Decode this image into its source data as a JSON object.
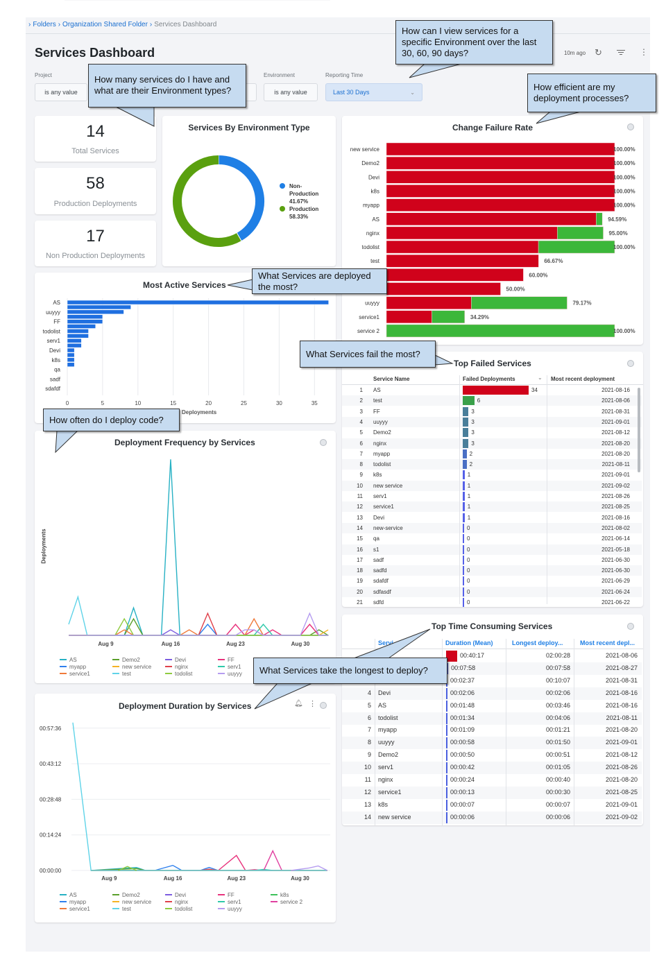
{
  "breadcrumb": {
    "items": [
      "Folders",
      "Organization Shared Folder"
    ],
    "current": "Services Dashboard"
  },
  "header": {
    "title": "Services Dashboard",
    "updated": "10m ago",
    "icons": [
      "refresh-icon",
      "filter-icon",
      "more-vert-icon"
    ]
  },
  "filters": {
    "project": {
      "label": "Project",
      "value": "is any value"
    },
    "environment": {
      "label": "Environment",
      "value": "is any value"
    },
    "reporting_time": {
      "label": "Reporting Time",
      "value": "Last 30 Days"
    }
  },
  "kpis": [
    {
      "value": "14",
      "label": "Total Services"
    },
    {
      "value": "58",
      "label": "Production Deployments"
    },
    {
      "value": "17",
      "label": "Non Production Deployments"
    }
  ],
  "callouts": {
    "c1": "How many services do I have and what are their Environment types?",
    "c2": "How can I view services for a specific Environment over the last 30, 60, 90 days?",
    "c3": "How efficient are my deployment processes?",
    "c4": "What Services are deployed the most?",
    "c5": "What Services fail the most?",
    "c6": "How often do I deploy code?",
    "c7": "What Services take the longest to deploy?"
  },
  "colors": {
    "accent": "#1f7fe5",
    "fail": "#d0021b",
    "success": "#3cb73a",
    "series": {
      "AS": "#27b1c4",
      "Demo2": "#5a9f2b",
      "Devi": "#7b5ce0",
      "FF": "#e8327c",
      "k8s": "#3cc15a",
      "myapp": "#2f80ed",
      "new service": "#f5b324",
      "nginx": "#e0404a",
      "serv1": "#2ec9a9",
      "service 2": "#e040a0",
      "service1": "#f07a3a",
      "test": "#5fd3e8",
      "todolist": "#8fcb3f",
      "uuyyy": "#b59cf0"
    }
  },
  "chart_data": [
    {
      "id": "env",
      "type": "pie",
      "title": "Services By Environment Type",
      "donut": true,
      "legend": "right",
      "slices": [
        {
          "name": "Non-Production",
          "label": "41.67%",
          "value": 41.67,
          "color": "#1f7fe5"
        },
        {
          "name": "Production",
          "label": "58.33%",
          "value": 58.33,
          "color": "#5aa00f"
        }
      ]
    },
    {
      "id": "cfr",
      "type": "bar",
      "orientation": "horizontal",
      "stacked": true,
      "title": "Change Failure Rate",
      "categories": [
        "new service",
        "Demo2",
        "Devi",
        "k8s",
        "myapp",
        "AS",
        "nginx",
        "todolist",
        "test",
        "",
        "",
        "uuyyy",
        "service1",
        "service 2"
      ],
      "series": [
        {
          "color": "#d0021b",
          "values": [
            100,
            100,
            100,
            100,
            100,
            91.9,
            74.9,
            66.6,
            66.67,
            60,
            50,
            37.2,
            19.9,
            0
          ]
        },
        {
          "color": "#3cb73a",
          "values": [
            0,
            0,
            0,
            0,
            0,
            2.69,
            20.1,
            33.4,
            0,
            0,
            0,
            41.97,
            14.39,
            100
          ]
        }
      ],
      "data_labels": [
        "100.00%",
        "100.00%",
        "100.00%",
        "100.00%",
        "100.00%",
        "94.59%",
        "95.00%",
        "100.00%",
        "66.67%",
        "60.00%",
        "50.00%",
        "79.17%",
        "34.29%",
        "100.00%"
      ]
    },
    {
      "id": "active",
      "type": "bar",
      "orientation": "horizontal",
      "title": "Most Active Services",
      "xlabel": "Deployments",
      "categories": [
        "AS",
        "",
        "uuyyy",
        "",
        "FF",
        "",
        "todolist",
        "",
        "serv1",
        "",
        "Devi",
        "",
        "k8s",
        "",
        "qa",
        "",
        "sadf",
        "",
        "sdafdf"
      ],
      "values": [
        37,
        9,
        8,
        5,
        5,
        4,
        3,
        3,
        2,
        2,
        1,
        1,
        1,
        1,
        0,
        0,
        0,
        0,
        0
      ],
      "xticks": [
        "0",
        "5",
        "10",
        "15",
        "20",
        "25",
        "30",
        "35"
      ],
      "xlim": [
        0,
        37
      ],
      "grid": true,
      "color": "#1f6fe0"
    },
    {
      "id": "freq",
      "type": "line",
      "title": "Deployment Frequency by Services",
      "ylabel": "Deployments",
      "ylim": [
        0,
        32
      ],
      "grid": true,
      "legend": "bottom",
      "yticks": [
        "0",
        "5",
        "10",
        "15",
        "20",
        "25",
        "30"
      ],
      "xticks": [
        "Aug 9",
        "Aug 16",
        "Aug 23",
        "Aug 30"
      ],
      "x": [
        "Aug 5",
        "Aug 6",
        "Aug 7",
        "Aug 8",
        "Aug 9",
        "Aug 10",
        "Aug 11",
        "Aug 12",
        "Aug 13",
        "Aug 14",
        "Aug 15",
        "Aug 16",
        "Aug 17",
        "Aug 18",
        "Aug 19",
        "Aug 20",
        "Aug 21",
        "Aug 22",
        "Aug 23",
        "Aug 24",
        "Aug 25",
        "Aug 26",
        "Aug 27",
        "Aug 28",
        "Aug 29",
        "Aug 30",
        "Aug 31",
        "Sep 1",
        "Sep 2"
      ],
      "series": [
        {
          "name": "AS",
          "values": [
            0,
            0,
            0,
            0,
            0,
            0,
            0,
            5,
            0,
            0,
            0,
            32,
            0,
            0,
            0,
            0,
            0,
            0,
            0,
            0,
            0,
            0,
            0,
            0,
            0,
            0,
            0,
            0,
            0
          ]
        },
        {
          "name": "Demo2",
          "values": [
            0,
            0,
            0,
            0,
            0,
            0,
            0,
            3,
            0,
            0,
            0,
            0,
            0,
            0,
            0,
            0,
            0,
            0,
            0,
            0,
            0,
            0,
            0,
            0,
            0,
            0,
            0,
            1,
            0
          ]
        },
        {
          "name": "Devi",
          "values": [
            0,
            0,
            0,
            0,
            0,
            0,
            0,
            0,
            0,
            0,
            0,
            1,
            0,
            0,
            0,
            0,
            0,
            0,
            0,
            0,
            0,
            0,
            0,
            0,
            0,
            0,
            0,
            0,
            0
          ]
        },
        {
          "name": "FF",
          "values": [
            0,
            0,
            0,
            0,
            0,
            0,
            0,
            0,
            0,
            0,
            0,
            0,
            0,
            0,
            0,
            0,
            0,
            0,
            2,
            0,
            1,
            0,
            1,
            0,
            0,
            0,
            2,
            0,
            0
          ]
        },
        {
          "name": "myapp",
          "values": [
            0,
            0,
            0,
            0,
            0,
            0,
            0,
            0,
            0,
            0,
            0,
            0,
            0,
            0,
            0,
            2,
            0,
            0,
            0,
            0,
            0,
            0,
            0,
            0,
            0,
            0,
            0,
            0,
            0
          ]
        },
        {
          "name": "new service",
          "values": [
            0,
            0,
            0,
            0,
            0,
            0,
            0,
            0,
            0,
            0,
            0,
            0,
            0,
            0,
            0,
            0,
            0,
            0,
            0,
            0,
            0,
            0,
            0,
            0,
            0,
            0,
            0,
            0,
            1
          ]
        },
        {
          "name": "nginx",
          "values": [
            0,
            0,
            0,
            0,
            0,
            0,
            0,
            0,
            0,
            0,
            0,
            0,
            0,
            0,
            0,
            4,
            0,
            0,
            0,
            0,
            0,
            0,
            0,
            0,
            0,
            0,
            0,
            0,
            0
          ]
        },
        {
          "name": "serv1",
          "values": [
            0,
            0,
            0,
            0,
            0,
            0,
            0,
            0,
            0,
            0,
            0,
            0,
            0,
            0,
            0,
            0,
            0,
            0,
            0,
            0,
            0,
            2,
            0,
            0,
            0,
            0,
            0,
            0,
            0
          ]
        },
        {
          "name": "service1",
          "values": [
            0,
            0,
            0,
            0,
            0,
            0,
            1,
            0,
            0,
            0,
            0,
            0,
            0,
            1,
            0,
            0,
            0,
            0,
            0,
            0,
            3,
            0,
            0,
            0,
            0,
            0,
            0,
            0,
            0
          ]
        },
        {
          "name": "test",
          "values": [
            2,
            7,
            0,
            0,
            0,
            0,
            0,
            0,
            0,
            0,
            0,
            0,
            0,
            0,
            0,
            0,
            0,
            0,
            0,
            0,
            0,
            0,
            0,
            0,
            0,
            0,
            0,
            0,
            0
          ]
        },
        {
          "name": "todolist",
          "values": [
            0,
            0,
            0,
            0,
            0,
            0,
            3,
            0,
            0,
            0,
            0,
            0,
            0,
            0,
            0,
            0,
            0,
            0,
            0,
            0,
            0,
            0,
            0,
            0,
            0,
            0,
            0,
            0,
            0
          ]
        },
        {
          "name": "uuyyy",
          "values": [
            0,
            0,
            0,
            0,
            0,
            0,
            0,
            0,
            0,
            0,
            0,
            0,
            0,
            0,
            0,
            0,
            0,
            0,
            0,
            1,
            1,
            0,
            0,
            0,
            0,
            0,
            4,
            0,
            0
          ]
        }
      ]
    },
    {
      "id": "dur",
      "type": "line",
      "title": "Deployment Duration by Services",
      "ylim": [
        "00:00:00",
        "01:00:00"
      ],
      "grid": true,
      "legend": "bottom",
      "yticks": [
        "00:00:00",
        "00:14:24",
        "00:28:48",
        "00:43:12",
        "00:57:36"
      ],
      "xticks": [
        "Aug 9",
        "Aug 16",
        "Aug 23",
        "Aug 30"
      ],
      "x": [
        "Aug 5",
        "Aug 6",
        "Aug 7",
        "Aug 8",
        "Aug 9",
        "Aug 10",
        "Aug 11",
        "Aug 12",
        "Aug 13",
        "Aug 14",
        "Aug 15",
        "Aug 16",
        "Aug 17",
        "Aug 18",
        "Aug 19",
        "Aug 20",
        "Aug 21",
        "Aug 22",
        "Aug 23",
        "Aug 24",
        "Aug 25",
        "Aug 26",
        "Aug 27",
        "Aug 28",
        "Aug 29",
        "Aug 30",
        "Aug 31",
        "Sep 1",
        "Sep 2"
      ],
      "series": [
        {
          "name": "AS",
          "values": {
            "Aug 7": "00:00:00",
            "Aug 12": "00:01:13",
            "Aug 13": "00:00:00"
          }
        },
        {
          "name": "Demo2",
          "values": {
            "Aug 7": "00:00:00",
            "Aug 12": "00:00:45",
            "Aug 13": "00:00:00"
          }
        },
        {
          "name": "Devi",
          "values": {
            "Aug 7": "00:00:00",
            "Sep 2": "00:00:00"
          }
        },
        {
          "name": "FF",
          "values": {
            "Aug 21": "00:00:00",
            "Aug 23": "00:06:05",
            "Aug 24": "00:00:00",
            "Aug 25": "00:00:20",
            "Aug 26": "00:00:00"
          }
        },
        {
          "name": "k8s",
          "values": {
            "Aug 7": "00:00:00",
            "Sep 2": "00:00:00"
          }
        },
        {
          "name": "myapp",
          "values": {
            "Aug 14": "00:00:00",
            "Aug 16": "00:02:03",
            "Aug 17": "00:00:00",
            "Aug 19": "00:00:00",
            "Aug 20": "00:01:13",
            "Aug 21": "00:00:00"
          }
        },
        {
          "name": "new service",
          "values": {
            "Aug 7": "00:00:00",
            "Sep 2": "00:00:00"
          }
        },
        {
          "name": "nginx",
          "values": {
            "Aug 19": "00:00:00",
            "Aug 20": "00:00:30",
            "Aug 21": "00:00:00"
          }
        },
        {
          "name": "serv1",
          "values": {
            "Aug 25": "00:00:00",
            "Aug 26": "00:00:25",
            "Aug 27": "00:00:00"
          }
        },
        {
          "name": "service 2",
          "values": {
            "Aug 26": "00:00:00",
            "Aug 27": "00:07:57",
            "Aug 28": "00:00:00"
          }
        },
        {
          "name": "service1",
          "values": {
            "Aug 7": "00:00:00",
            "Sep 2": "00:00:00"
          }
        },
        {
          "name": "test",
          "values": {
            "Aug 5": "00:59:50",
            "Aug 7": "00:00:00",
            "Sep 2": "00:00:00"
          }
        },
        {
          "name": "todolist",
          "values": {
            "Aug 10": "00:00:00",
            "Aug 11": "00:01:36",
            "Aug 12": "00:00:00"
          }
        },
        {
          "name": "uuyyy",
          "values": {
            "Aug 29": "00:00:00",
            "Aug 31": "00:01:00",
            "Sep 1": "00:01:50",
            "Sep 2": "00:00:00"
          }
        }
      ]
    }
  ],
  "failed_table": {
    "title": "Top Failed Services",
    "columns": [
      "Service Name",
      "Failed Deployments",
      "Most recent deployment"
    ],
    "rows": [
      [
        "1",
        "AS",
        34,
        "2021-08-16"
      ],
      [
        "2",
        "test",
        6,
        "2021-08-06"
      ],
      [
        "3",
        "FF",
        3,
        "2021-08-31"
      ],
      [
        "4",
        "uuyyy",
        3,
        "2021-09-01"
      ],
      [
        "5",
        "Demo2",
        3,
        "2021-08-12"
      ],
      [
        "6",
        "nginx",
        3,
        "2021-08-20"
      ],
      [
        "7",
        "myapp",
        2,
        "2021-08-20"
      ],
      [
        "8",
        "todolist",
        2,
        "2021-08-11"
      ],
      [
        "9",
        "k8s",
        1,
        "2021-09-01"
      ],
      [
        "10",
        "new service",
        1,
        "2021-09-02"
      ],
      [
        "11",
        "serv1",
        1,
        "2021-08-26"
      ],
      [
        "12",
        "service1",
        1,
        "2021-08-25"
      ],
      [
        "13",
        "Devi",
        1,
        "2021-08-16"
      ],
      [
        "14",
        "new-service",
        0,
        "2021-08-02"
      ],
      [
        "15",
        "qa",
        0,
        "2021-06-14"
      ],
      [
        "16",
        "s1",
        0,
        "2021-05-18"
      ],
      [
        "17",
        "sadf",
        0,
        "2021-06-30"
      ],
      [
        "18",
        "sadfd",
        0,
        "2021-06-30"
      ],
      [
        "19",
        "sdafdf",
        0,
        "2021-06-29"
      ],
      [
        "20",
        "sdfasdf",
        0,
        "2021-06-24"
      ],
      [
        "21",
        "sdfd",
        0,
        "2021-06-22"
      ]
    ]
  },
  "time_table": {
    "title": "Top Time Consuming Services",
    "columns": [
      "Servi",
      "Duration (Mean)",
      "Longest deploy...",
      "Most recent depl..."
    ],
    "rows": [
      [
        "",
        "",
        "00:40:17",
        "02:00:28",
        "2021-08-06"
      ],
      [
        "",
        "",
        "00:07:58",
        "00:07:58",
        "2021-08-27"
      ],
      [
        "",
        "",
        "00:02:37",
        "00:10:07",
        "2021-08-31"
      ],
      [
        "4",
        "Devi",
        "00:02:06",
        "00:02:06",
        "2021-08-16"
      ],
      [
        "5",
        "AS",
        "00:01:48",
        "00:03:46",
        "2021-08-16"
      ],
      [
        "6",
        "todolist",
        "00:01:34",
        "00:04:06",
        "2021-08-11"
      ],
      [
        "7",
        "myapp",
        "00:01:09",
        "00:01:21",
        "2021-08-20"
      ],
      [
        "8",
        "uuyyy",
        "00:00:58",
        "00:01:50",
        "2021-09-01"
      ],
      [
        "9",
        "Demo2",
        "00:00:50",
        "00:00:51",
        "2021-08-12"
      ],
      [
        "10",
        "serv1",
        "00:00:42",
        "00:01:05",
        "2021-08-26"
      ],
      [
        "11",
        "nginx",
        "00:00:24",
        "00:00:40",
        "2021-08-20"
      ],
      [
        "12",
        "service1",
        "00:00:13",
        "00:00:30",
        "2021-08-25"
      ],
      [
        "13",
        "k8s",
        "00:00:07",
        "00:00:07",
        "2021-09-01"
      ],
      [
        "14",
        "new service",
        "00:00:06",
        "00:00:06",
        "2021-09-02"
      ]
    ]
  }
}
